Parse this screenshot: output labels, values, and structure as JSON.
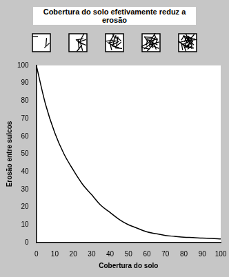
{
  "chart_data": {
    "type": "line",
    "title": "Cobertura do solo efetivamente reduz a erosão",
    "x_label": "Cobertura do solo",
    "y_label": "Erosão entre sulcos",
    "x": [
      0,
      5,
      10,
      15,
      20,
      25,
      30,
      35,
      40,
      45,
      50,
      55,
      60,
      65,
      70,
      75,
      80,
      85,
      90,
      95,
      100
    ],
    "values": [
      100,
      78,
      62,
      50,
      41,
      33,
      27,
      21,
      17,
      13,
      10,
      8,
      6,
      5,
      4,
      3.5,
      3,
      2.8,
      2.5,
      2.3,
      2
    ],
    "color": "#000000",
    "xlim": [
      0,
      100
    ],
    "ylim": [
      0,
      100
    ],
    "xticks": [
      0,
      10,
      20,
      30,
      40,
      50,
      60,
      70,
      80,
      90,
      100
    ],
    "yticks": [
      0,
      10,
      20,
      30,
      40,
      50,
      60,
      70,
      80,
      90,
      100
    ],
    "grid": false
  }
}
